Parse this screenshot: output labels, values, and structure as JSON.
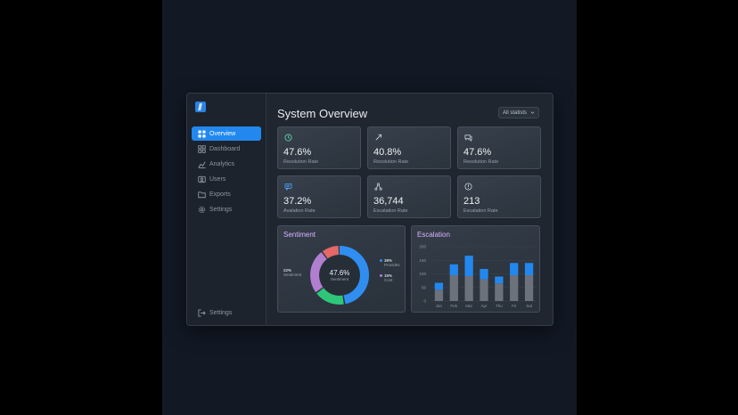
{
  "sidebar": {
    "items": [
      {
        "label": "Overview",
        "icon": "grid-icon",
        "active": true
      },
      {
        "label": "Dashboard",
        "icon": "dashboard-icon",
        "active": false
      },
      {
        "label": "Analytics",
        "icon": "analytics-icon",
        "active": false
      },
      {
        "label": "Users",
        "icon": "users-icon",
        "active": false
      },
      {
        "label": "Exports",
        "icon": "folder-icon",
        "active": false
      },
      {
        "label": "Settings",
        "icon": "gear-icon",
        "active": false
      }
    ],
    "footer": {
      "label": "Settings",
      "icon": "logout-icon"
    }
  },
  "header": {
    "title": "System Overview",
    "filter": "All statists"
  },
  "cards": [
    {
      "value": "47.6%",
      "label": "Resolution Rate",
      "icon": "clock-icon"
    },
    {
      "value": "40.8%",
      "label": "Resolution Rate",
      "icon": "rocket-icon"
    },
    {
      "value": "47.6%",
      "label": "Resolution Rate",
      "icon": "chat-icon"
    },
    {
      "value": "37.2%",
      "label": "Avalation Rate",
      "icon": "message-icon"
    },
    {
      "value": "36,744",
      "label": "Escalation Rate",
      "icon": "network-icon"
    },
    {
      "value": "213",
      "label": "Escalation Rate",
      "icon": "alert-icon"
    }
  ],
  "sentiment": {
    "title": "Sentiment",
    "center_value": "47.6%",
    "center_label": "Sentiment",
    "left_pct": "22%",
    "left_label": "Sentiment",
    "legend": [
      {
        "pct": "38%",
        "label": "Provides",
        "color": "#2f8ef0"
      },
      {
        "pct": "15%",
        "label": "Cost",
        "color": "#b07fd0"
      }
    ],
    "segments": [
      {
        "value": 47.6,
        "color": "#2f8ef0"
      },
      {
        "value": 17.4,
        "color": "#2fc67a"
      },
      {
        "value": 25.0,
        "color": "#b07fd0"
      },
      {
        "value": 10.0,
        "color": "#e56767"
      }
    ]
  },
  "escalation": {
    "title": "Escalation"
  },
  "chart_data": {
    "type": "bar",
    "stacked": true,
    "categories": [
      "Jan",
      "Feb",
      "Mar",
      "Apr",
      "Thu",
      "Fri",
      "Sat"
    ],
    "series": [
      {
        "values": [
          42,
          95,
          92,
          80,
          65,
          95,
          95
        ],
        "color": "#6b727c"
      },
      {
        "values": [
          25,
          40,
          75,
          38,
          25,
          45,
          45
        ],
        "color": "#2288ef"
      }
    ],
    "yticks": [
      "200",
      "150",
      "100",
      "50",
      "0"
    ],
    "ylim": [
      0,
      200
    ]
  },
  "colors": {
    "accent": "#2288ef",
    "panel_title": "#d9b3ff"
  }
}
